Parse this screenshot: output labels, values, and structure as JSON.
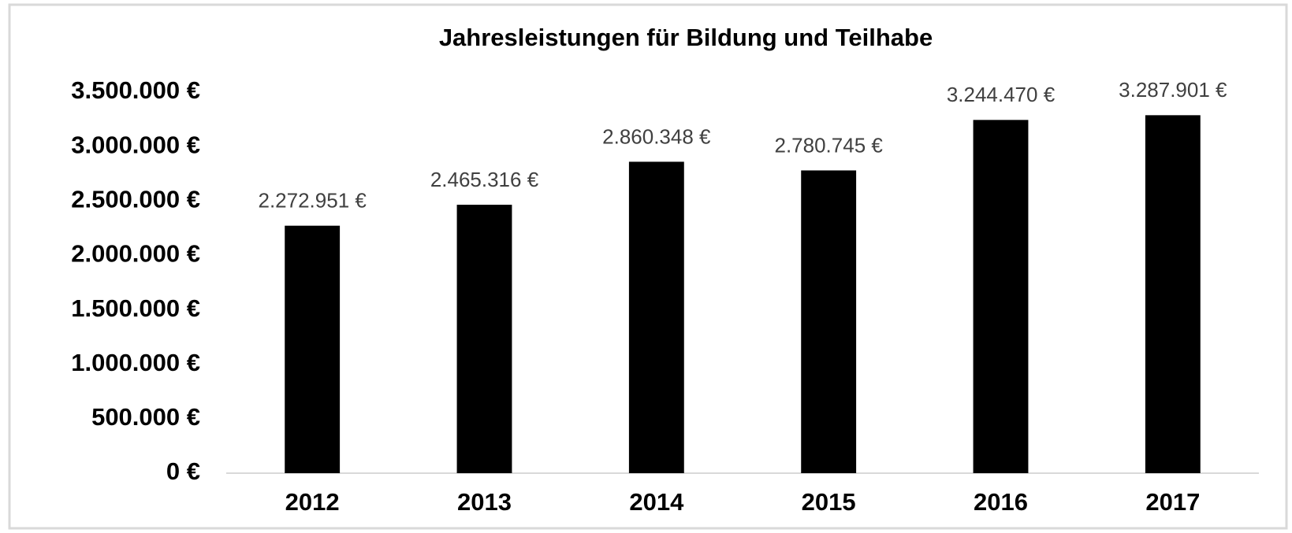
{
  "chart_data": {
    "type": "bar",
    "title": "Jahresleistungen für Bildung und Teilhabe",
    "categories": [
      "2012",
      "2013",
      "2014",
      "2015",
      "2016",
      "2017"
    ],
    "values": [
      2272951,
      2465316,
      2860348,
      2780745,
      3244470,
      3287901
    ],
    "value_labels": [
      "2.272.951 €",
      "2.465.316 €",
      "2.860.348 €",
      "2.780.745 €",
      "3.244.470 €",
      "3.287.901 €"
    ],
    "color": "#000000",
    "ylim": [
      0,
      3500000
    ],
    "yticks": [
      {
        "value": 0,
        "label": "0 €"
      },
      {
        "value": 500000,
        "label": "500.000 €"
      },
      {
        "value": 1000000,
        "label": "1.000.000 €"
      },
      {
        "value": 1500000,
        "label": "1.500.000 €"
      },
      {
        "value": 2000000,
        "label": "2.000.000 €"
      },
      {
        "value": 2500000,
        "label": "2.500.000 €"
      },
      {
        "value": 3000000,
        "label": "3.000.000 €"
      },
      {
        "value": 3500000,
        "label": "3.500.000 €"
      }
    ],
    "grid": false
  }
}
